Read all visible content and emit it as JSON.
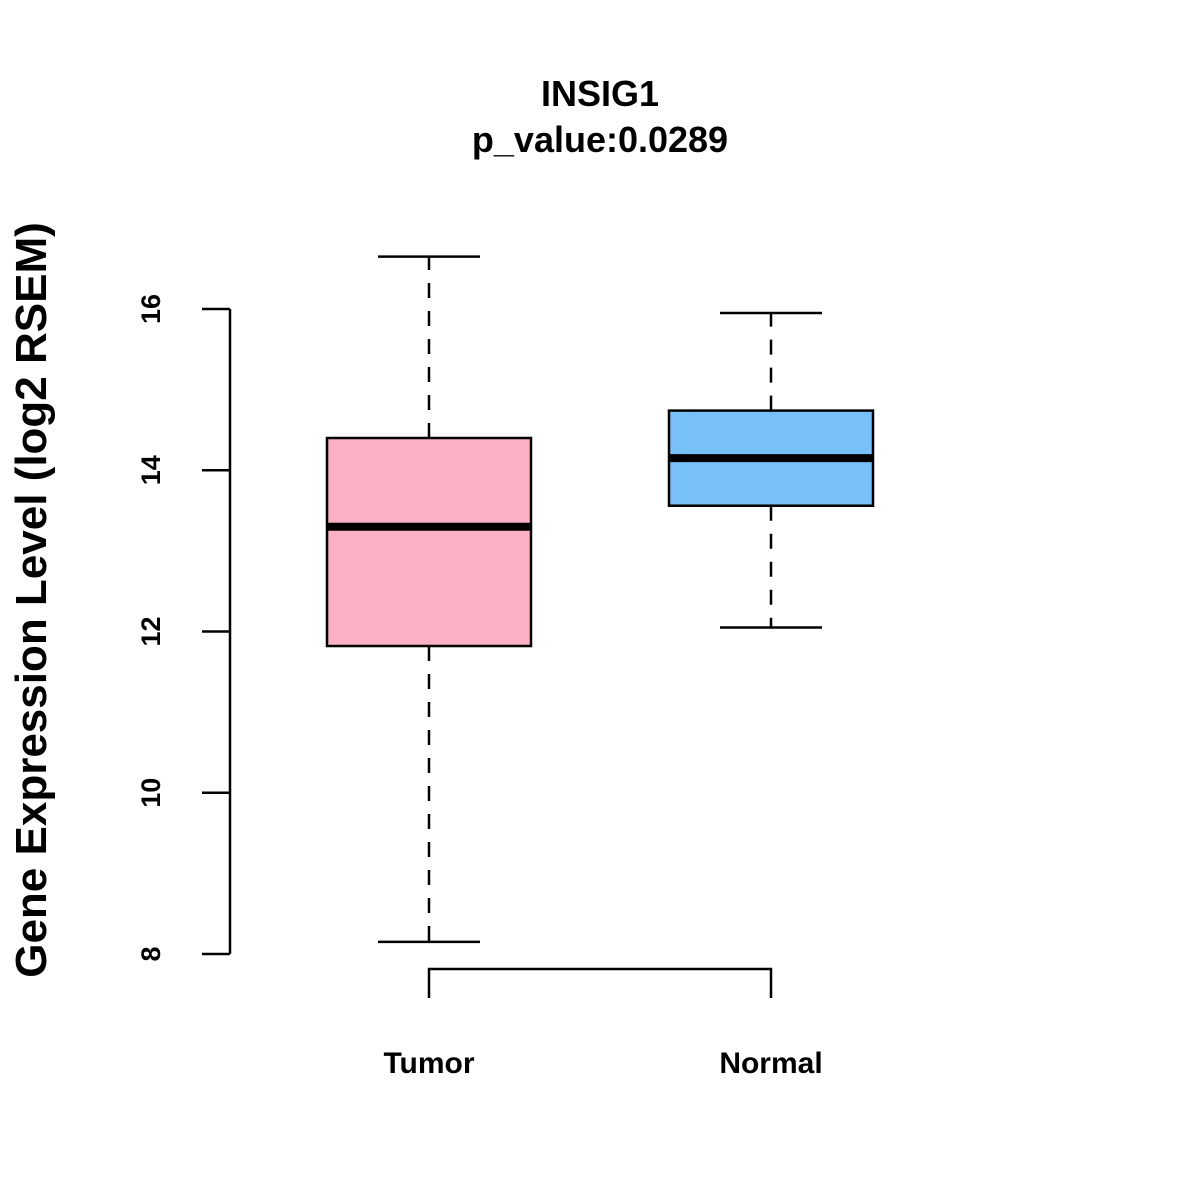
{
  "chart_data": {
    "type": "boxplot",
    "title": "INSIG1",
    "subtitle": "p_value:0.0289",
    "xlabel": "",
    "ylabel": "Gene Expression Level (log2 RSEM)",
    "ylim": [
      8,
      16
    ],
    "yticks": [
      8,
      10,
      12,
      14,
      16
    ],
    "categories": [
      "Tumor",
      "Normal"
    ],
    "boxes": [
      {
        "name": "Tumor",
        "color": "#FBB1C3",
        "whisker_low": 8.15,
        "q1": 11.82,
        "median": 13.3,
        "q3": 14.4,
        "whisker_high": 16.65
      },
      {
        "name": "Normal",
        "color": "#78C1F8",
        "whisker_low": 12.05,
        "q1": 13.56,
        "median": 14.15,
        "q3": 14.74,
        "whisker_high": 15.95
      }
    ],
    "comparison_bracket": [
      "Tumor",
      "Normal"
    ],
    "grid": false,
    "legend": "none"
  }
}
